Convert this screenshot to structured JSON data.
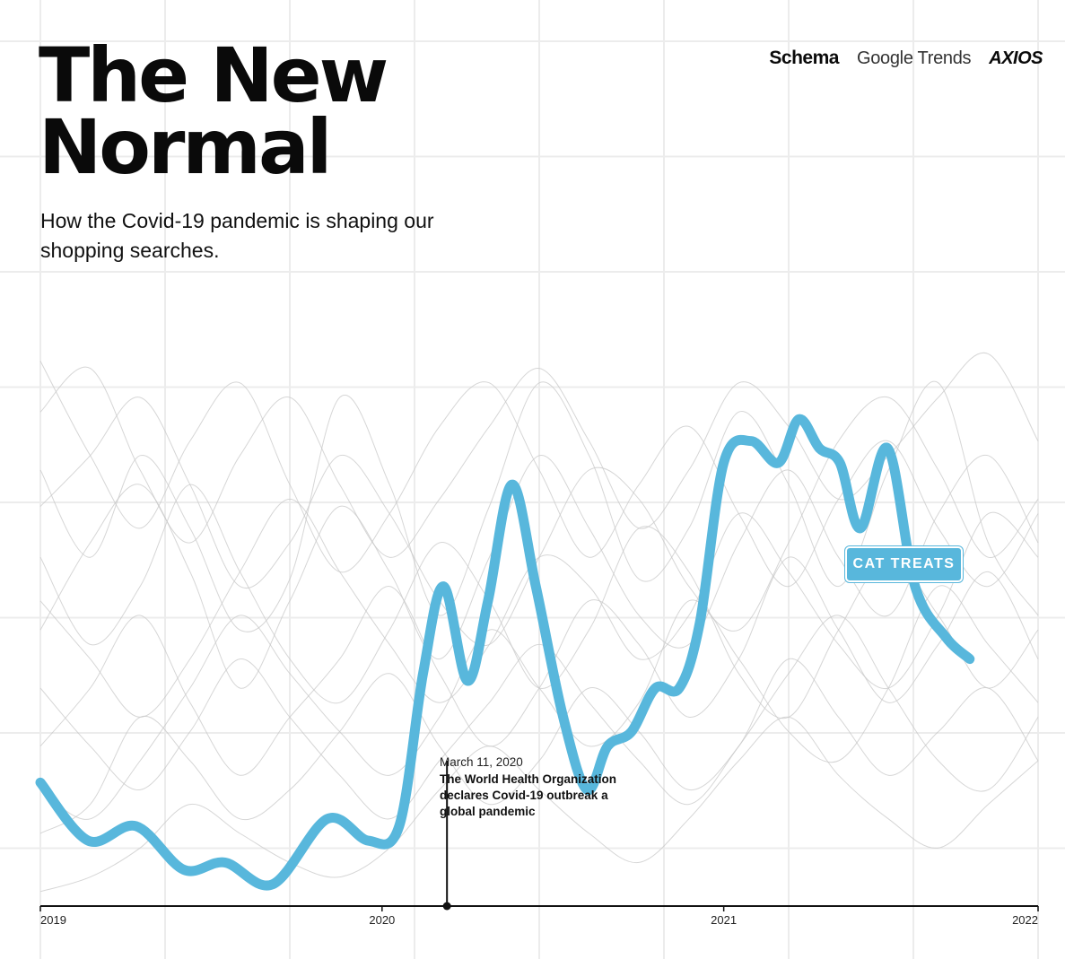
{
  "title_lines": [
    "The New",
    "Normal"
  ],
  "subtitle": "How the Covid-19 pandemic is shaping our shopping searches.",
  "logos": {
    "schema": "Schema",
    "google_trends": "Google Trends",
    "axios": "AXIOS"
  },
  "colors": {
    "highlight": "#58b7dc",
    "background_lines": "#c8c8c8",
    "grid": "#ececec",
    "axis": "#111111"
  },
  "annotation": {
    "date": "March 11, 2020",
    "text": "The World Health Organization declares Covid-19 outbreak a global pandemic",
    "x": 2020.19
  },
  "chart_data": {
    "type": "line",
    "title": "The New Normal",
    "subtitle": "How the Covid-19 pandemic is shaping our shopping searches.",
    "xlabel": "",
    "ylabel": "",
    "xlim": [
      2019.0,
      2021.92
    ],
    "ylim": [
      0,
      100
    ],
    "x_ticks": [
      {
        "label": "2019",
        "value": 2019.0
      },
      {
        "label": "2020",
        "value": 2020.0
      },
      {
        "label": "2021",
        "value": 2021.0
      },
      {
        "label": "2022",
        "value": 2021.92
      }
    ],
    "grid": true,
    "highlight_series": {
      "name": "CAT TREATS",
      "x": [
        2019.0,
        2019.14,
        2019.28,
        2019.42,
        2019.54,
        2019.68,
        2019.84,
        2019.96,
        2020.05,
        2020.12,
        2020.18,
        2020.25,
        2020.31,
        2020.38,
        2020.45,
        2020.53,
        2020.6,
        2020.66,
        2020.73,
        2020.8,
        2020.87,
        2020.93,
        2021.0,
        2021.08,
        2021.16,
        2021.22,
        2021.28,
        2021.34,
        2021.4,
        2021.48,
        2021.56,
        2021.65,
        2021.72
      ],
      "values": [
        17,
        9,
        11,
        5,
        6,
        3,
        12,
        9,
        11,
        32,
        44,
        31,
        42,
        58,
        44,
        26,
        16,
        22,
        24,
        30,
        30,
        39,
        61,
        64,
        61,
        67,
        63,
        61,
        52,
        63,
        44,
        37,
        34
      ]
    },
    "background_series": [
      {
        "values": [
          60,
          48,
          62,
          52,
          38,
          45,
          70,
          58,
          40,
          55,
          72,
          62,
          45,
          52,
          68,
          58,
          44,
          60,
          72,
          50,
          40
        ]
      },
      {
        "values": [
          38,
          50,
          58,
          46,
          30,
          42,
          55,
          46,
          34,
          48,
          62,
          52,
          40,
          36,
          50,
          60,
          48,
          40,
          54,
          62,
          50
        ]
      },
      {
        "values": [
          22,
          30,
          40,
          28,
          18,
          26,
          34,
          44,
          32,
          22,
          30,
          42,
          36,
          26,
          34,
          48,
          38,
          28,
          36,
          46,
          34
        ]
      },
      {
        "values": [
          75,
          62,
          52,
          64,
          72,
          58,
          46,
          54,
          66,
          72,
          60,
          48,
          58,
          66,
          54,
          44,
          56,
          64,
          52,
          44,
          54
        ]
      },
      {
        "values": [
          48,
          36,
          44,
          58,
          46,
          34,
          28,
          38,
          50,
          42,
          30,
          38,
          52,
          46,
          32,
          26,
          38,
          48,
          40,
          30,
          38
        ]
      },
      {
        "values": [
          10,
          14,
          26,
          20,
          12,
          16,
          24,
          32,
          22,
          14,
          20,
          30,
          24,
          16,
          22,
          34,
          26,
          18,
          24,
          30,
          20
        ]
      },
      {
        "values": [
          68,
          74,
          60,
          50,
          62,
          70,
          58,
          48,
          56,
          66,
          74,
          64,
          52,
          60,
          72,
          66,
          56,
          62,
          70,
          76,
          64
        ]
      },
      {
        "values": [
          30,
          22,
          16,
          24,
          34,
          26,
          18,
          12,
          20,
          28,
          36,
          28,
          20,
          14,
          22,
          32,
          40,
          30,
          20,
          16,
          26
        ]
      },
      {
        "values": [
          2,
          4,
          8,
          14,
          10,
          6,
          4,
          8,
          16,
          22,
          16,
          10,
          6,
          12,
          20,
          26,
          18,
          12,
          8,
          14,
          20
        ]
      },
      {
        "values": [
          55,
          62,
          70,
          58,
          44,
          50,
          62,
          54,
          42,
          36,
          48,
          60,
          56,
          44,
          38,
          50,
          64,
          70,
          60,
          48,
          56
        ]
      },
      {
        "values": [
          42,
          34,
          26,
          34,
          46,
          56,
          46,
          36,
          28,
          36,
          48,
          44,
          34,
          40,
          54,
          46,
          36,
          30,
          40,
          54,
          48
        ]
      },
      {
        "values": [
          16,
          12,
          20,
          30,
          40,
          32,
          24,
          18,
          26,
          38,
          30,
          22,
          28,
          42,
          34,
          24,
          20,
          30,
          44,
          36,
          28
        ]
      }
    ]
  }
}
